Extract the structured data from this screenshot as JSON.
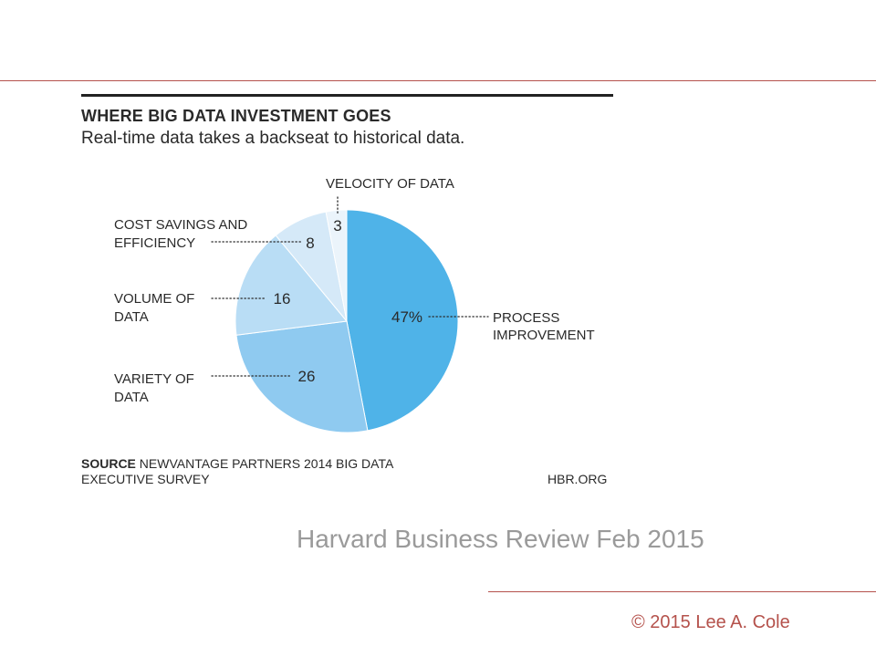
{
  "chart_data": {
    "type": "pie",
    "title": "WHERE BIG DATA INVESTMENT GOES",
    "subtitle": "Real-time data takes a backseat to historical data.",
    "slices": [
      {
        "label": "PROCESS IMPROVEMENT",
        "value": 47,
        "value_label": "47%",
        "color": "#4fb3e8"
      },
      {
        "label": "VARIETY OF DATA",
        "value": 26,
        "value_label": "26",
        "color": "#8fcaf0"
      },
      {
        "label": "VOLUME OF DATA",
        "value": 16,
        "value_label": "16",
        "color": "#b9ddf5"
      },
      {
        "label": "COST SAVINGS AND EFFICIENCY",
        "value": 8,
        "value_label": "8",
        "color": "#d5e9f8"
      },
      {
        "label": "VELOCITY OF DATA",
        "value": 3,
        "value_label": "3",
        "color": "#ebf4fb"
      }
    ],
    "source_label": "SOURCE",
    "source_text_1": "NEWVANTAGE PARTNERS 2014 BIG DATA",
    "source_text_2": "EXECUTIVE SURVEY",
    "site": "HBR.ORG"
  },
  "slide": {
    "caption": "Harvard Business Review  Feb 2015",
    "copyright": "© 2015 Lee A. Cole"
  },
  "colors": {
    "accent": "#b5524c",
    "caption": "#9a9a9a"
  }
}
